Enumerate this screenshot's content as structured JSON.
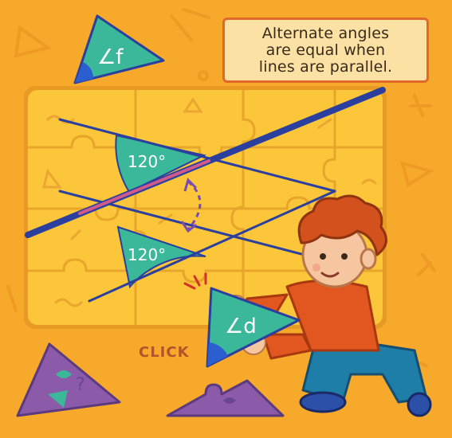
{
  "callout": {
    "text": "Alternate angles\nare equal when\nlines are parallel."
  },
  "angle_tiles": {
    "top_label": "∠f",
    "bottom_label": "∠d"
  },
  "angles": {
    "upper_value": "120°",
    "lower_value": "120°"
  },
  "hint": {
    "click": "CLICK"
  },
  "colors": {
    "background": "#f6a92a",
    "board": "#fbc63a",
    "angle_fill": "#3bb89a",
    "line": "#2b3f9e",
    "transversal_highlight": "#d05a8a",
    "callout_border": "#e0692a",
    "loose_piece": "#8b5aa8"
  }
}
